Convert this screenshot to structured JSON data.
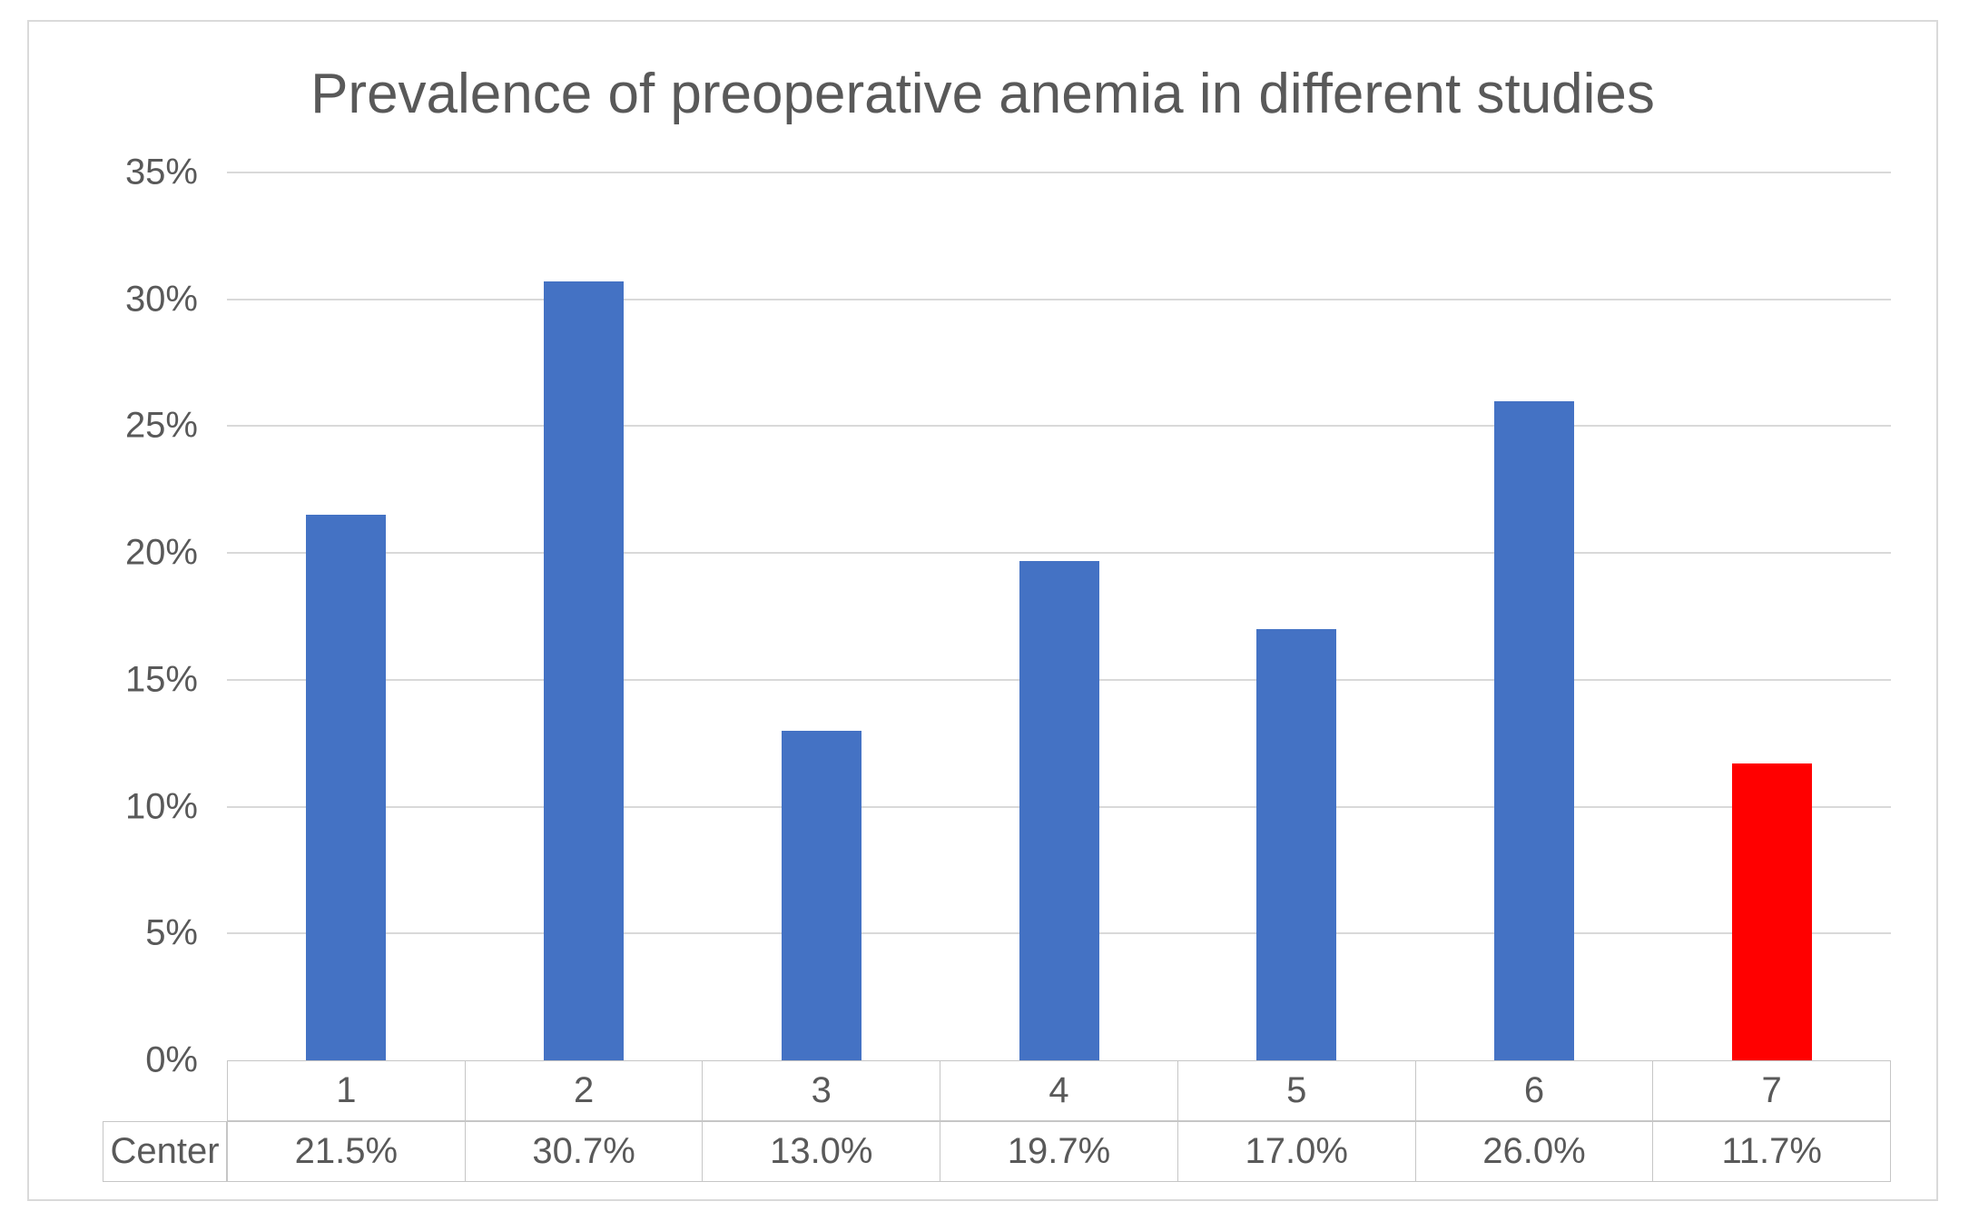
{
  "chart_data": {
    "type": "bar",
    "title": "Prevalence of preoperative anemia in different studies",
    "categories": [
      "1",
      "2",
      "3",
      "4",
      "5",
      "6",
      "7"
    ],
    "series": [
      {
        "name": "Center",
        "values": [
          21.5,
          30.7,
          13.0,
          19.7,
          17.0,
          26.0,
          11.7
        ],
        "value_labels": [
          "21.5%",
          "30.7%",
          "13.0%",
          "19.7%",
          "17.0%",
          "26.0%",
          "11.7%"
        ]
      }
    ],
    "ylim": [
      0,
      35
    ],
    "ytick_step": 5,
    "ytick_labels": [
      "0%",
      "5%",
      "10%",
      "15%",
      "20%",
      "25%",
      "30%",
      "35%"
    ],
    "grid": true,
    "legend_position": "none",
    "data_table": {
      "row_header": "Center",
      "cells": [
        "21.5%",
        "30.7%",
        "13.0%",
        "19.7%",
        "17.0%",
        "26.0%",
        "11.7%"
      ]
    },
    "colors": {
      "bar_default": "#4472C4",
      "bar_highlight": "#FF0000",
      "highlight_index": 6,
      "gridline": "#D9D9D9",
      "text": "#595959",
      "table_border": "#C6C6C6",
      "frame_border": "#DADADA",
      "background": "#FFFFFF"
    }
  }
}
